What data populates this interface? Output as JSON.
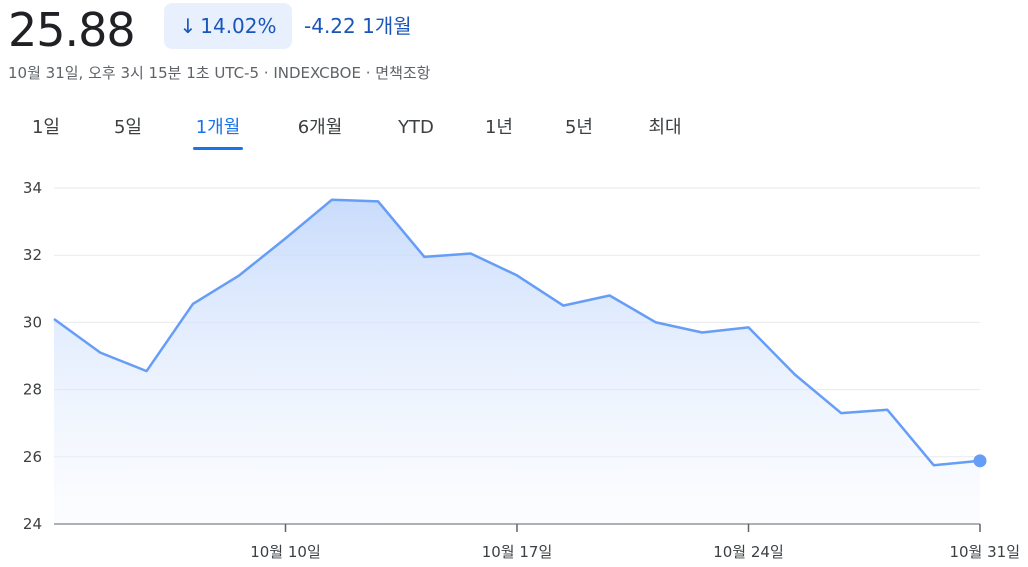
{
  "quote": {
    "price": "25.88",
    "change_percent": "14.02%",
    "change_arrow_icon": "arrow-down-icon",
    "change_abs": "-4.22 1개월",
    "meta": "10월 31일, 오후 3시 15분 1초 UTC-5 · INDEXCBOE · 면책조항",
    "accent_color": "#1a56b8"
  },
  "tabs": [
    {
      "label": "1일",
      "active": false
    },
    {
      "label": "5일",
      "active": false
    },
    {
      "label": "1개월",
      "active": true
    },
    {
      "label": "6개월",
      "active": false
    },
    {
      "label": "YTD",
      "active": false
    },
    {
      "label": "1년",
      "active": false
    },
    {
      "label": "5년",
      "active": false
    },
    {
      "label": "최대",
      "active": false
    }
  ],
  "chart_data": {
    "type": "area",
    "line_color": "#669df6",
    "fill_color": "#d2e3fc",
    "grid": true,
    "ylim": [
      24,
      34
    ],
    "yticks": [
      24,
      26,
      28,
      30,
      32,
      34
    ],
    "ytick_labels": [
      "24",
      "26",
      "28",
      "30",
      "32",
      "34"
    ],
    "xtick_labels": [
      "10월 10일",
      "10월 17일",
      "10월 24일",
      "10월 31일"
    ],
    "xtick_positions": [
      5,
      10,
      15,
      20
    ],
    "x": [
      0,
      1,
      2,
      3,
      4,
      5,
      6,
      7,
      8,
      9,
      10,
      11,
      12,
      13,
      14,
      15,
      16,
      17,
      18,
      19,
      20
    ],
    "values": [
      30.1,
      29.1,
      28.55,
      30.55,
      31.4,
      32.5,
      33.65,
      33.6,
      31.95,
      32.05,
      31.4,
      30.5,
      30.8,
      30.0,
      29.7,
      29.85,
      28.45,
      27.3,
      27.4,
      25.75,
      25.88
    ]
  }
}
